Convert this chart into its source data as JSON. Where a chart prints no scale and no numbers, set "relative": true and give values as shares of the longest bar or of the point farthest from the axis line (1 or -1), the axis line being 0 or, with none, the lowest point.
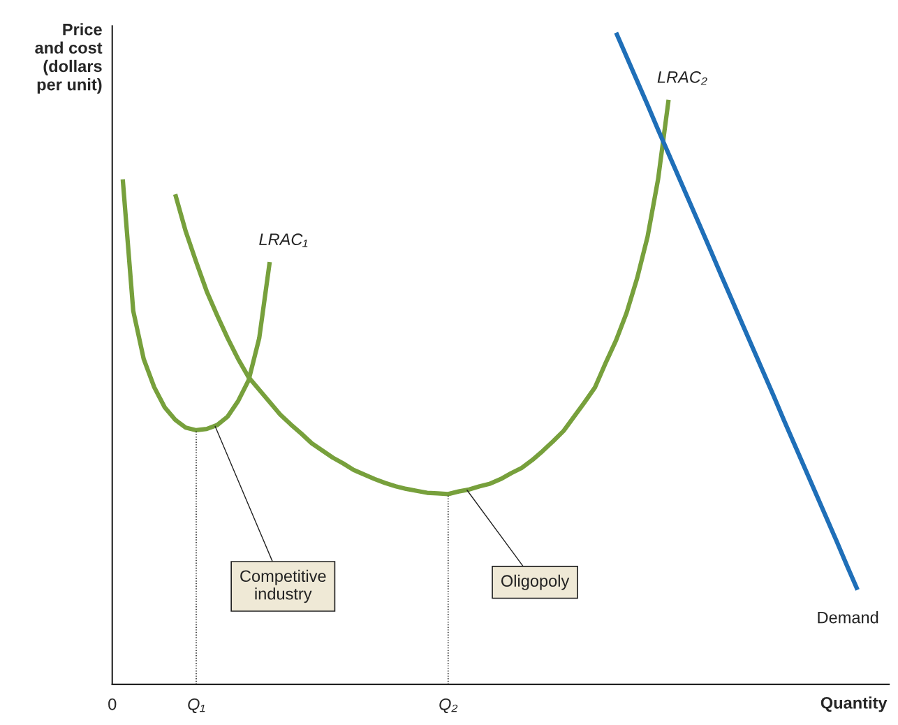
{
  "chart_data": {
    "type": "line",
    "relative": true,
    "ylabel": "Price\nand cost\n(dollars\nper unit)",
    "xlabel": "Quantity",
    "categories": [
      "0",
      null,
      null,
      null,
      null,
      null,
      null,
      null,
      "Q₁",
      null,
      null,
      null,
      null,
      null,
      null,
      null,
      null,
      null,
      null,
      null,
      null,
      null,
      null,
      null,
      null,
      null,
      null,
      null,
      null,
      null,
      null,
      null,
      "Q₂",
      null,
      null,
      null,
      null,
      null,
      null,
      null,
      null,
      null,
      null,
      null,
      null,
      null,
      null,
      null,
      null,
      null,
      null,
      null,
      null,
      null,
      null,
      null,
      null,
      null,
      null,
      null,
      null,
      null,
      null,
      null,
      null,
      null,
      null,
      null,
      null,
      null,
      null,
      null,
      null,
      null,
      null
    ],
    "series": [
      {
        "name": "LRAC₁",
        "color": "#77a03c",
        "values": [
          null,
          0.775,
          0.573,
          0.499,
          0.456,
          0.425,
          0.406,
          0.394,
          0.39,
          0.392,
          0.398,
          0.411,
          0.435,
          0.467,
          0.531,
          0.648,
          null,
          null,
          null,
          null,
          null,
          null,
          null,
          null,
          null,
          null,
          null,
          null,
          null,
          null,
          null,
          null,
          null,
          null,
          null,
          null,
          null,
          null,
          null,
          null,
          null,
          null,
          null,
          null,
          null,
          null,
          null,
          null,
          null,
          null,
          null,
          null,
          null,
          null,
          null,
          null,
          null,
          null,
          null,
          null,
          null,
          null,
          null,
          null,
          null,
          null,
          null,
          null,
          null,
          null,
          null,
          null,
          null,
          null,
          null
        ]
      },
      {
        "name": "LRAC₂",
        "color": "#77a03c",
        "values": [
          null,
          null,
          null,
          null,
          null,
          null,
          0.752,
          0.695,
          0.648,
          0.603,
          0.566,
          0.531,
          0.499,
          0.471,
          0.452,
          0.433,
          0.414,
          0.399,
          0.385,
          0.37,
          0.359,
          0.348,
          0.339,
          0.329,
          0.322,
          0.315,
          0.309,
          0.304,
          0.3,
          0.297,
          0.294,
          0.293,
          0.292,
          0.296,
          0.299,
          0.304,
          0.308,
          0.315,
          0.324,
          0.332,
          0.344,
          0.358,
          0.373,
          0.389,
          0.411,
          0.433,
          0.456,
          0.493,
          0.528,
          0.57,
          0.623,
          0.687,
          0.775,
          0.897,
          null,
          null,
          null,
          null,
          null,
          null,
          null,
          null,
          null,
          null,
          null,
          null,
          null,
          null,
          null,
          null,
          null,
          null,
          null,
          null,
          null
        ]
      },
      {
        "name": "Demand",
        "color": "#1f6fb8",
        "values": [
          null,
          null,
          null,
          null,
          null,
          null,
          null,
          null,
          null,
          null,
          null,
          null,
          null,
          null,
          null,
          null,
          null,
          null,
          null,
          null,
          null,
          null,
          null,
          null,
          null,
          null,
          null,
          null,
          null,
          null,
          null,
          null,
          null,
          null,
          null,
          null,
          null,
          null,
          null,
          null,
          null,
          null,
          null,
          null,
          null,
          null,
          null,
          null,
          1.0,
          0.963,
          0.926,
          0.889,
          0.851,
          0.814,
          0.777,
          0.74,
          0.703,
          0.666,
          0.628,
          0.591,
          0.554,
          0.517,
          0.48,
          0.443,
          0.405,
          0.368,
          0.331,
          0.294,
          0.257,
          0.22,
          0.182,
          0.145,
          null,
          null,
          null
        ]
      }
    ],
    "ref_lines": [
      {
        "axis": "x",
        "value": "Q₁",
        "color": "#000000",
        "line_style": "dotted"
      },
      {
        "axis": "x",
        "value": "Q₂",
        "color": "#000000",
        "line_style": "dotted"
      }
    ],
    "annotations": [
      "Competitive\nindustry",
      "Oligopoly"
    ]
  }
}
